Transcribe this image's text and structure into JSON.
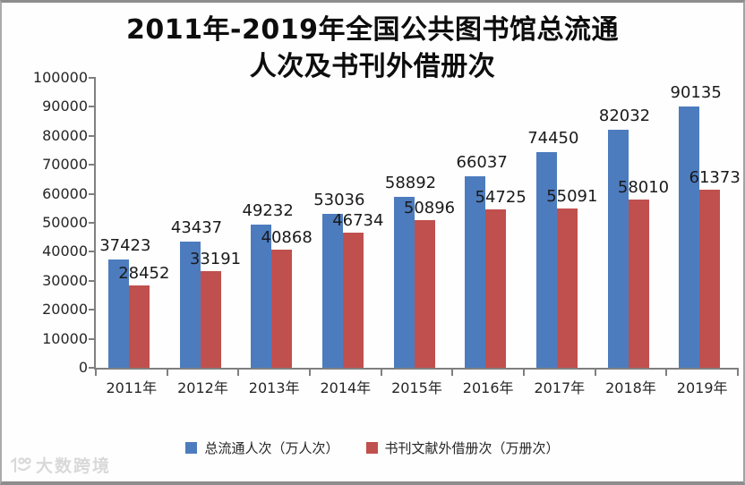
{
  "title": {
    "line1": "2011年-2019年全国公共图书馆总流通",
    "line2": "人次及书刊外借册次"
  },
  "chart_data": {
    "type": "bar",
    "categories": [
      "2011年",
      "2012年",
      "2013年",
      "2014年",
      "2015年",
      "2016年",
      "2017年",
      "2018年",
      "2019年"
    ],
    "series": [
      {
        "name": "总流通人次（万人次）",
        "color": "#4d7cbe",
        "values": [
          37423,
          43437,
          49232,
          53036,
          58892,
          66037,
          74450,
          82032,
          90135
        ]
      },
      {
        "name": "书刊文献外借册次（万册次）",
        "color": "#c0504d",
        "values": [
          28452,
          33191,
          40868,
          46734,
          50896,
          54725,
          55091,
          58010,
          61373
        ]
      }
    ],
    "title": "2011年-2019年全国公共图书馆总流通人次及书刊外借册次",
    "xlabel": "",
    "ylabel": "",
    "ylim": [
      0,
      100000
    ],
    "y_ticks": [
      0,
      10000,
      20000,
      30000,
      40000,
      50000,
      60000,
      70000,
      80000,
      90000,
      100000
    ],
    "grid": false,
    "legend_position": "bottom",
    "data_labels": true
  },
  "watermark": {
    "text": "大数跨境"
  }
}
